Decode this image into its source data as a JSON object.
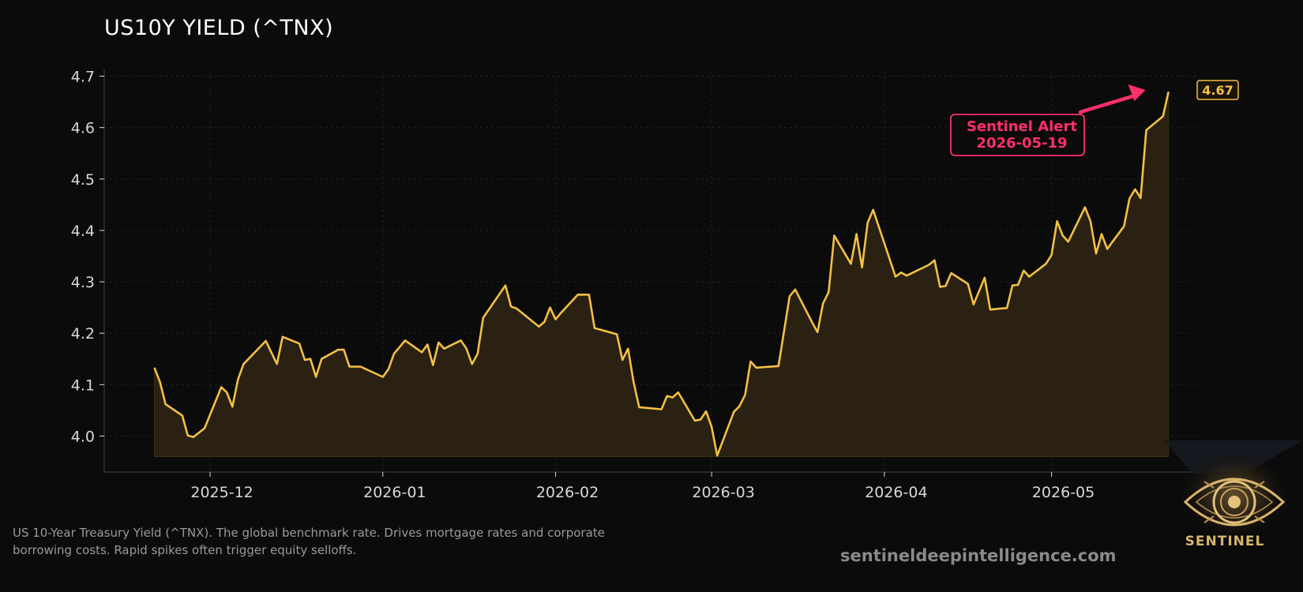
{
  "title": "US10Y YIELD (^TNX)",
  "caption": "US 10-Year Treasury Yield (^TNX). The global benchmark rate. Drives mortgage rates and corporate borrowing costs. Rapid spikes often trigger equity selloffs.",
  "website": "sentineldeepintelligence.com",
  "logo": {
    "text": "SENTINEL",
    "icon": "eye-icon"
  },
  "colors": {
    "background": "#0b0b0b",
    "line": "#f3c045",
    "area": "#2a2112",
    "annotation": "#ff2f6b",
    "grid": "#222222",
    "axis": "#d8d8d8",
    "caption": "#9a9a9a"
  },
  "chart_data": {
    "type": "line",
    "title": "US10Y YIELD (^TNX)",
    "xlabel": "",
    "ylabel": "",
    "grid": true,
    "ylim": [
      3.93,
      4.71
    ],
    "xlim": [
      "2025-11-12",
      "2026-05-27"
    ],
    "yticks": [
      4.0,
      4.1,
      4.2,
      4.3,
      4.4,
      4.5,
      4.6,
      4.7
    ],
    "ytick_labels": [
      "4.0",
      "4.1",
      "4.2",
      "4.3",
      "4.4",
      "4.5",
      "4.6",
      "4.7"
    ],
    "xticks": [
      "2025-12-01",
      "2026-01-01",
      "2026-02-01",
      "2026-03-01",
      "2026-04-01",
      "2026-05-01"
    ],
    "xtick_labels": [
      "2025-12",
      "2026-01",
      "2026-02",
      "2026-03",
      "2026-04",
      "2026-05"
    ],
    "last_value_label": "4.67",
    "annotation": {
      "text": [
        "Sentinel Alert",
        "2026-05-19"
      ],
      "points_to": {
        "x": "2026-05-19",
        "y": 4.67
      }
    },
    "series": [
      {
        "points": [
          {
            "x": "2025-11-21",
            "y": 4.133
          },
          {
            "x": "2025-11-22",
            "y": 4.105
          },
          {
            "x": "2025-11-23",
            "y": 4.062
          },
          {
            "x": "2025-11-26",
            "y": 4.04
          },
          {
            "x": "2025-11-27",
            "y": 4.001
          },
          {
            "x": "2025-11-28",
            "y": 3.998
          },
          {
            "x": "2025-11-30",
            "y": 4.015
          },
          {
            "x": "2025-12-03",
            "y": 4.095
          },
          {
            "x": "2025-12-04",
            "y": 4.085
          },
          {
            "x": "2025-12-05",
            "y": 4.057
          },
          {
            "x": "2025-12-06",
            "y": 4.11
          },
          {
            "x": "2025-12-07",
            "y": 4.14
          },
          {
            "x": "2025-12-11",
            "y": 4.185
          },
          {
            "x": "2025-12-13",
            "y": 4.14
          },
          {
            "x": "2025-12-14",
            "y": 4.193
          },
          {
            "x": "2025-12-17",
            "y": 4.18
          },
          {
            "x": "2025-12-18",
            "y": 4.148
          },
          {
            "x": "2025-12-19",
            "y": 4.15
          },
          {
            "x": "2025-12-20",
            "y": 4.115
          },
          {
            "x": "2025-12-21",
            "y": 4.15
          },
          {
            "x": "2025-12-24",
            "y": 4.168
          },
          {
            "x": "2025-12-25",
            "y": 4.168
          },
          {
            "x": "2025-12-26",
            "y": 4.135
          },
          {
            "x": "2025-12-28",
            "y": 4.135
          },
          {
            "x": "2026-01-01",
            "y": 4.115
          },
          {
            "x": "2026-01-02",
            "y": 4.13
          },
          {
            "x": "2026-01-03",
            "y": 4.16
          },
          {
            "x": "2026-01-05",
            "y": 4.186
          },
          {
            "x": "2026-01-08",
            "y": 4.163
          },
          {
            "x": "2026-01-09",
            "y": 4.178
          },
          {
            "x": "2026-01-10",
            "y": 4.138
          },
          {
            "x": "2026-01-11",
            "y": 4.182
          },
          {
            "x": "2026-01-12",
            "y": 4.17
          },
          {
            "x": "2026-01-15",
            "y": 4.186
          },
          {
            "x": "2026-01-16",
            "y": 4.17
          },
          {
            "x": "2026-01-17",
            "y": 4.14
          },
          {
            "x": "2026-01-18",
            "y": 4.16
          },
          {
            "x": "2026-01-19",
            "y": 4.23
          },
          {
            "x": "2026-01-23",
            "y": 4.293
          },
          {
            "x": "2026-01-24",
            "y": 4.252
          },
          {
            "x": "2026-01-25",
            "y": 4.248
          },
          {
            "x": "2026-01-29",
            "y": 4.213
          },
          {
            "x": "2026-01-30",
            "y": 4.222
          },
          {
            "x": "2026-01-31",
            "y": 4.25
          },
          {
            "x": "2026-02-01",
            "y": 4.227
          },
          {
            "x": "2026-02-02",
            "y": 4.24
          },
          {
            "x": "2026-02-05",
            "y": 4.275
          },
          {
            "x": "2026-02-07",
            "y": 4.275
          },
          {
            "x": "2026-02-08",
            "y": 4.21
          },
          {
            "x": "2026-02-12",
            "y": 4.198
          },
          {
            "x": "2026-02-13",
            "y": 4.148
          },
          {
            "x": "2026-02-14",
            "y": 4.17
          },
          {
            "x": "2026-02-15",
            "y": 4.105
          },
          {
            "x": "2026-02-16",
            "y": 4.056
          },
          {
            "x": "2026-02-20",
            "y": 4.052
          },
          {
            "x": "2026-02-21",
            "y": 4.078
          },
          {
            "x": "2026-02-22",
            "y": 4.075
          },
          {
            "x": "2026-02-23",
            "y": 4.085
          },
          {
            "x": "2026-02-26",
            "y": 4.03
          },
          {
            "x": "2026-02-27",
            "y": 4.032
          },
          {
            "x": "2026-02-28",
            "y": 4.048
          },
          {
            "x": "2026-03-01",
            "y": 4.018
          },
          {
            "x": "2026-03-02",
            "y": 3.962
          },
          {
            "x": "2026-03-05",
            "y": 4.047
          },
          {
            "x": "2026-03-06",
            "y": 4.058
          },
          {
            "x": "2026-03-07",
            "y": 4.08
          },
          {
            "x": "2026-03-08",
            "y": 4.145
          },
          {
            "x": "2026-03-09",
            "y": 4.133
          },
          {
            "x": "2026-03-13",
            "y": 4.136
          },
          {
            "x": "2026-03-15",
            "y": 4.272
          },
          {
            "x": "2026-03-16",
            "y": 4.285
          },
          {
            "x": "2026-03-19",
            "y": 4.222
          },
          {
            "x": "2026-03-20",
            "y": 4.202
          },
          {
            "x": "2026-03-21",
            "y": 4.258
          },
          {
            "x": "2026-03-22",
            "y": 4.28
          },
          {
            "x": "2026-03-23",
            "y": 4.39
          },
          {
            "x": "2026-03-26",
            "y": 4.335
          },
          {
            "x": "2026-03-27",
            "y": 4.393
          },
          {
            "x": "2026-03-28",
            "y": 4.328
          },
          {
            "x": "2026-03-29",
            "y": 4.415
          },
          {
            "x": "2026-03-30",
            "y": 4.44
          },
          {
            "x": "2026-04-03",
            "y": 4.31
          },
          {
            "x": "2026-04-04",
            "y": 4.318
          },
          {
            "x": "2026-04-05",
            "y": 4.312
          },
          {
            "x": "2026-04-09",
            "y": 4.333
          },
          {
            "x": "2026-04-10",
            "y": 4.342
          },
          {
            "x": "2026-04-11",
            "y": 4.29
          },
          {
            "x": "2026-04-12",
            "y": 4.292
          },
          {
            "x": "2026-04-13",
            "y": 4.317
          },
          {
            "x": "2026-04-16",
            "y": 4.296
          },
          {
            "x": "2026-04-17",
            "y": 4.256
          },
          {
            "x": "2026-04-19",
            "y": 4.308
          },
          {
            "x": "2026-04-20",
            "y": 4.246
          },
          {
            "x": "2026-04-23",
            "y": 4.249
          },
          {
            "x": "2026-04-24",
            "y": 4.293
          },
          {
            "x": "2026-04-25",
            "y": 4.294
          },
          {
            "x": "2026-04-26",
            "y": 4.322
          },
          {
            "x": "2026-04-27",
            "y": 4.31
          },
          {
            "x": "2026-04-30",
            "y": 4.335
          },
          {
            "x": "2026-05-01",
            "y": 4.352
          },
          {
            "x": "2026-05-02",
            "y": 4.418
          },
          {
            "x": "2026-05-03",
            "y": 4.39
          },
          {
            "x": "2026-05-04",
            "y": 4.378
          },
          {
            "x": "2026-05-07",
            "y": 4.445
          },
          {
            "x": "2026-05-08",
            "y": 4.418
          },
          {
            "x": "2026-05-09",
            "y": 4.355
          },
          {
            "x": "2026-05-10",
            "y": 4.393
          },
          {
            "x": "2026-05-11",
            "y": 4.364
          },
          {
            "x": "2026-05-14",
            "y": 4.408
          },
          {
            "x": "2026-05-15",
            "y": 4.462
          },
          {
            "x": "2026-05-16",
            "y": 4.48
          },
          {
            "x": "2026-05-17",
            "y": 4.463
          },
          {
            "x": "2026-05-18",
            "y": 4.595
          },
          {
            "x": "2026-05-21",
            "y": 4.622
          },
          {
            "x": "2026-05-22",
            "y": 4.67
          }
        ]
      }
    ]
  }
}
